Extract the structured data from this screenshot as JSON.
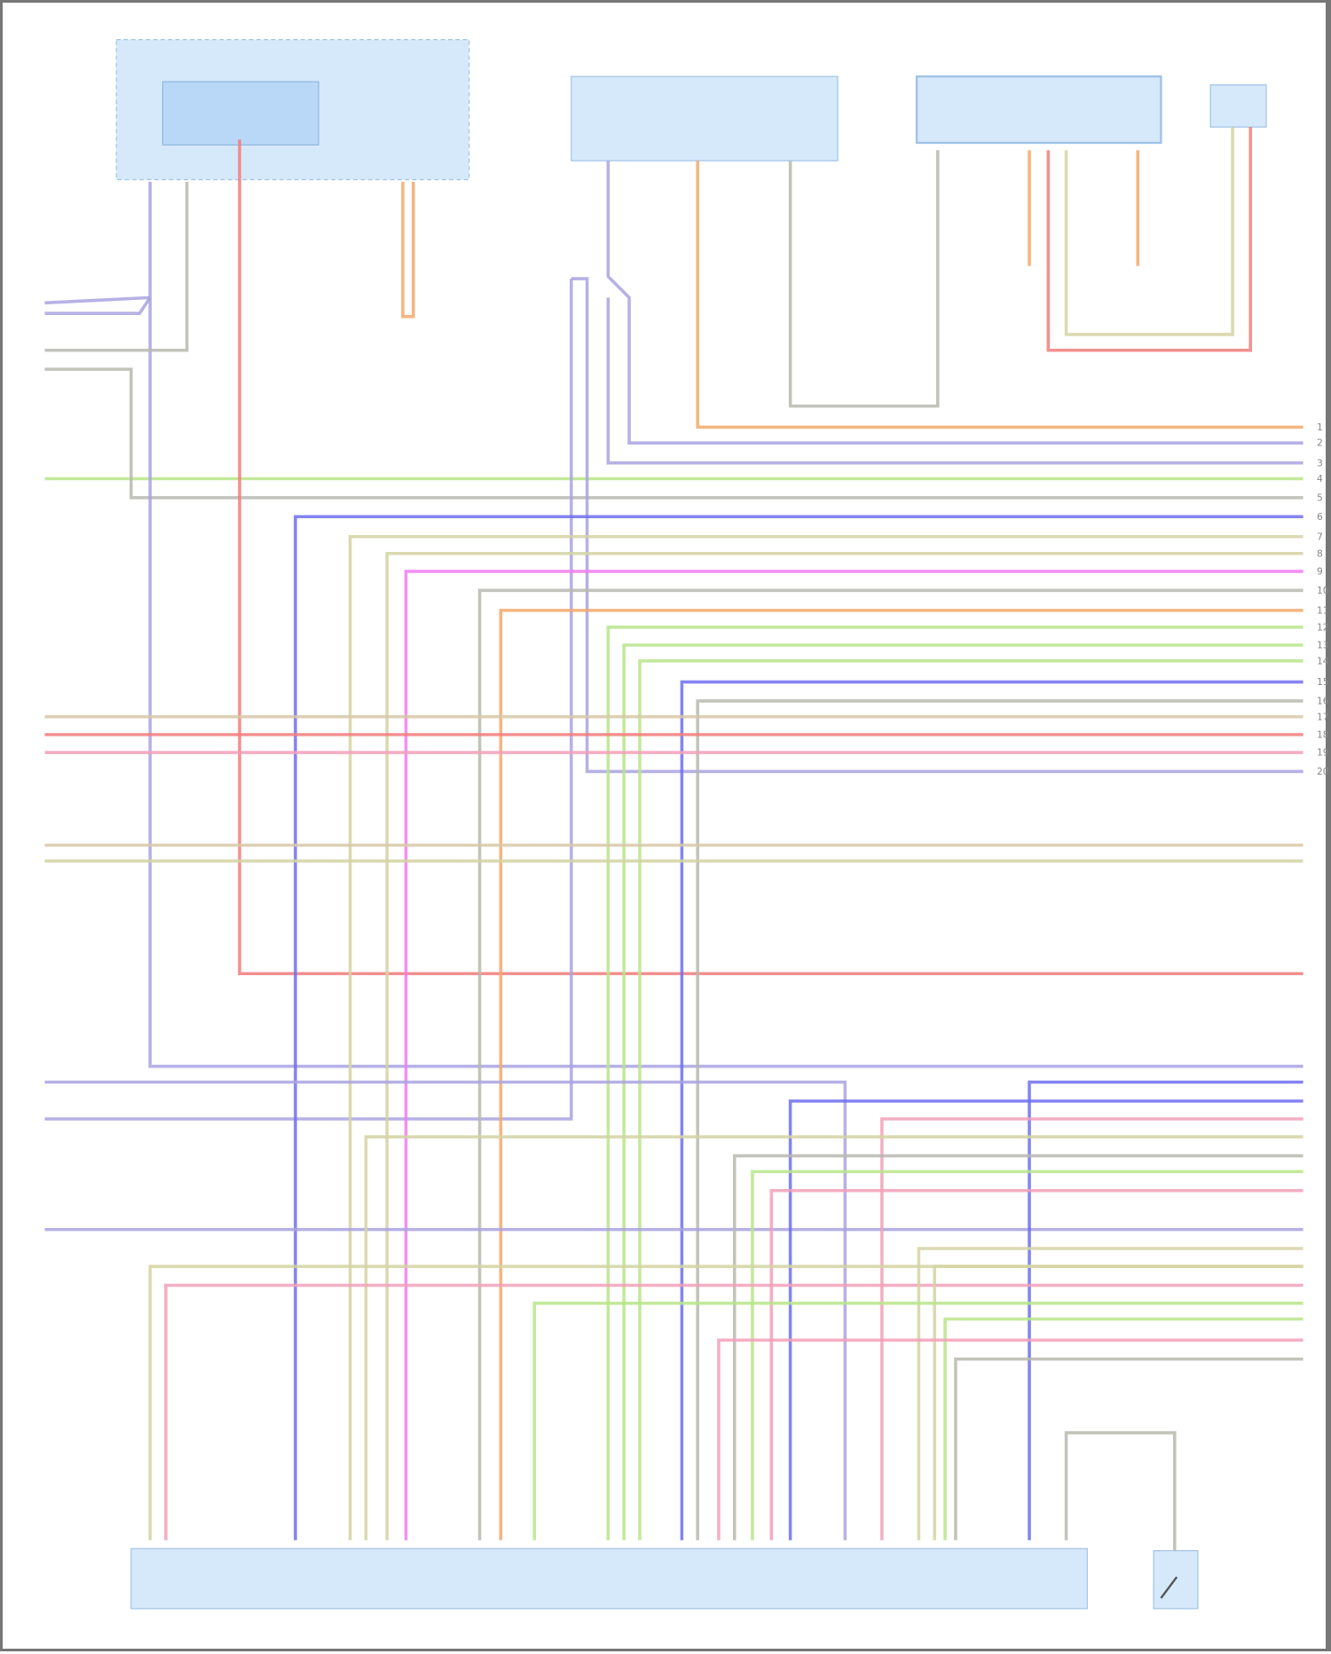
{
  "diagram": {
    "type": "wiring-diagram",
    "right_pin_numbers": [
      "1",
      "2",
      "3",
      "4",
      "5",
      "6",
      "7",
      "8",
      "9",
      "10",
      "11",
      "12",
      "13",
      "14",
      "15",
      "16",
      "17",
      "18",
      "19",
      "20"
    ],
    "colors": {
      "component_fill": "#d6e9fb",
      "component_border": "#9fc3e6",
      "orange": "#f5a86a",
      "lavender": "#a9a3e0",
      "blue": "#6f6ff0",
      "green": "#b9e58a",
      "gray": "#b8b8b0",
      "khaki": "#d3d3a3",
      "magenta": "#f07ef0",
      "red": "#f37d7d",
      "pink": "#f3a0b8",
      "tan": "#d8c8a8"
    }
  }
}
